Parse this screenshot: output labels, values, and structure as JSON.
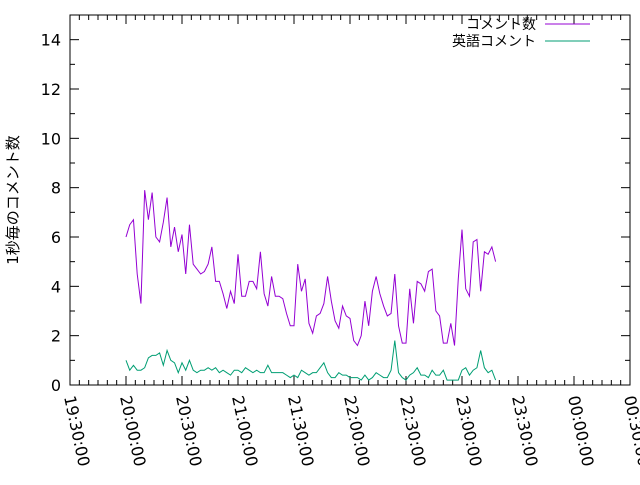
{
  "chart_data": {
    "type": "line",
    "title": "",
    "xlabel": "",
    "ylabel": "1秒毎のコメント数",
    "xlim": [
      "19:30:00",
      "00:30:00"
    ],
    "ylim": [
      0,
      15
    ],
    "x_ticks": [
      "19:30:00",
      "20:00:00",
      "20:30:00",
      "21:00:00",
      "21:30:00",
      "22:00:00",
      "22:30:00",
      "23:00:00",
      "23:30:00",
      "00:00:00",
      "00:30:00"
    ],
    "y_ticks": [
      0,
      2,
      4,
      6,
      8,
      10,
      12,
      14
    ],
    "grid": false,
    "legend_position": "top-right",
    "x_start": "20:00:00",
    "x_step_minutes": 2,
    "series": [
      {
        "name": "コメント数",
        "color": "#9400d3",
        "values": [
          6.0,
          6.5,
          6.7,
          4.5,
          3.3,
          7.9,
          6.7,
          7.8,
          6.0,
          5.8,
          6.6,
          7.6,
          5.6,
          6.4,
          5.4,
          6.1,
          4.5,
          6.5,
          4.9,
          4.7,
          4.5,
          4.6,
          4.9,
          5.6,
          4.2,
          4.2,
          3.7,
          3.1,
          3.8,
          3.3,
          5.3,
          3.6,
          3.6,
          4.2,
          4.2,
          3.9,
          5.4,
          3.7,
          3.2,
          4.4,
          3.6,
          3.6,
          3.5,
          2.9,
          2.4,
          2.4,
          4.9,
          3.8,
          4.3,
          2.5,
          2.1,
          2.8,
          2.9,
          3.3,
          4.4,
          3.4,
          2.6,
          2.3,
          3.2,
          2.8,
          2.7,
          1.8,
          1.6,
          2.0,
          3.4,
          2.4,
          3.8,
          4.4,
          3.7,
          3.2,
          2.8,
          2.9,
          4.5,
          2.4,
          1.7,
          1.7,
          3.9,
          2.5,
          4.2,
          4.1,
          3.8,
          4.6,
          4.7,
          3.0,
          2.8,
          1.7,
          1.7,
          2.5,
          1.6,
          4.3,
          6.3,
          3.9,
          3.6,
          5.8,
          5.9,
          3.8,
          5.4,
          5.3,
          5.6,
          5.0
        ]
      },
      {
        "name": "英語コメント",
        "color": "#009e73",
        "values": [
          1.0,
          0.6,
          0.8,
          0.6,
          0.6,
          0.7,
          1.1,
          1.2,
          1.2,
          1.3,
          0.8,
          1.4,
          1.0,
          0.9,
          0.5,
          0.9,
          0.6,
          1.0,
          0.6,
          0.5,
          0.6,
          0.6,
          0.7,
          0.6,
          0.7,
          0.5,
          0.6,
          0.5,
          0.4,
          0.6,
          0.6,
          0.5,
          0.7,
          0.6,
          0.5,
          0.6,
          0.5,
          0.5,
          0.8,
          0.5,
          0.5,
          0.5,
          0.5,
          0.4,
          0.3,
          0.4,
          0.3,
          0.6,
          0.5,
          0.4,
          0.5,
          0.5,
          0.7,
          0.9,
          0.5,
          0.3,
          0.3,
          0.5,
          0.4,
          0.4,
          0.3,
          0.3,
          0.3,
          0.2,
          0.4,
          0.2,
          0.3,
          0.5,
          0.4,
          0.3,
          0.3,
          0.6,
          1.8,
          0.5,
          0.3,
          0.2,
          0.4,
          0.5,
          0.7,
          0.4,
          0.4,
          0.3,
          0.6,
          0.4,
          0.4,
          0.6,
          0.2,
          0.2,
          0.2,
          0.2,
          0.6,
          0.7,
          0.4,
          0.6,
          0.7,
          1.4,
          0.7,
          0.5,
          0.6,
          0.2
        ]
      }
    ]
  }
}
